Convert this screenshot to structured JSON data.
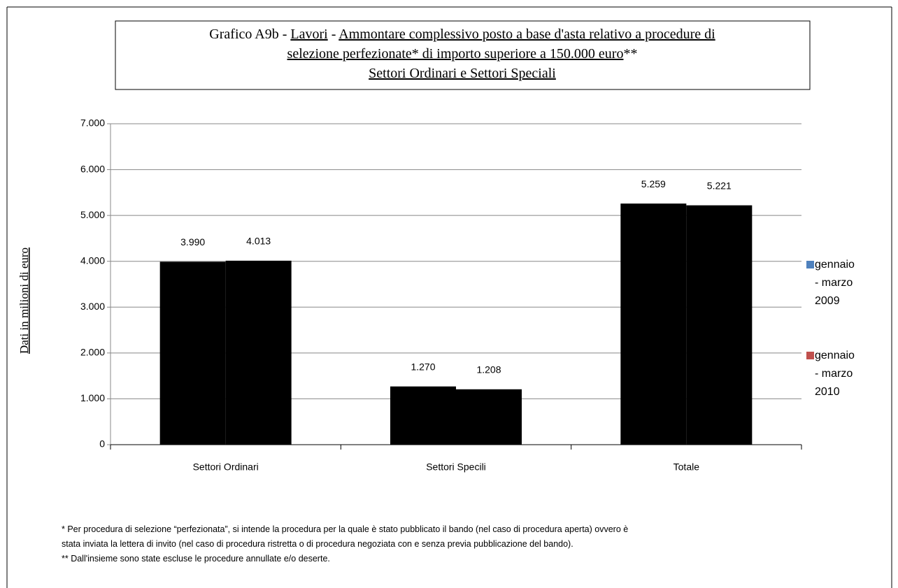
{
  "chart_data": {
    "type": "bar",
    "title": [
      [
        "Grafico  A9b - ",
        "Lavori",
        " - ",
        "Ammontare complessivo posto a base d'asta relativo a procedure di"
      ],
      [
        "selezione perfezionate* di importo superiore a 150.000 euro",
        "**"
      ],
      [
        "Settori Ordinari e Settori Speciali"
      ]
    ],
    "ylabel": "Dati in milioni di euro",
    "categories": [
      "Settori Ordinari",
      "Settori Specili",
      "Totale"
    ],
    "series": [
      {
        "name": "gennaio - marzo 2009",
        "color": "#4f81bd",
        "values": [
          3990,
          1270,
          5259
        ],
        "value_labels": [
          "3.990",
          "1.270",
          "5.259"
        ]
      },
      {
        "name": "gennaio - marzo 2010",
        "color": "#c0504d",
        "values": [
          4013,
          1208,
          5221
        ],
        "value_labels": [
          "4.013",
          "1.208",
          "5.221"
        ]
      }
    ],
    "ylim": [
      0,
      7000
    ],
    "yticks": [
      0,
      {
        "value": 1000,
        "label": "1.000"
      },
      {
        "value": 2000,
        "label": "2.000"
      },
      {
        "value": 3000,
        "label": "3.000"
      },
      {
        "value": 4000,
        "label": "4.000"
      },
      {
        "value": 5000,
        "label": "5.000"
      },
      {
        "value": 6000,
        "label": "6.000"
      },
      {
        "value": 7000,
        "label": "7.000"
      }
    ],
    "grid": true,
    "legend": "right",
    "notes": [
      "* Per procedura di selezione “perfezionata”, si intende la procedura per la quale è stato pubblicato il bando (nel caso di procedura aperta) ovvero è",
      "stata inviata la lettera di invito (nel caso di procedura ristretta o di procedura negoziata con e senza previa pubblicazione del bando).",
      "** Dall'insieme sono state escluse le procedure annullate e/o deserte."
    ]
  }
}
